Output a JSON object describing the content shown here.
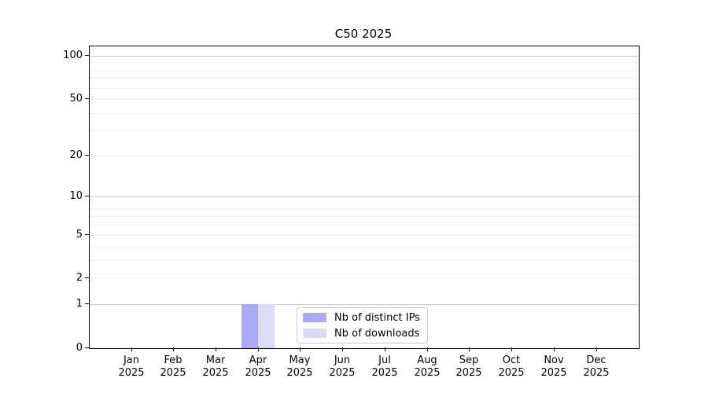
{
  "title": "C50 2025",
  "chart_data": {
    "type": "bar",
    "title": "C50 2025",
    "scale": "log1p",
    "grid": "horizontal",
    "legend_position": "lower center",
    "categories": [
      "Jan",
      "Feb",
      "Mar",
      "Apr",
      "May",
      "Jun",
      "Jul",
      "Aug",
      "Sep",
      "Oct",
      "Nov",
      "Dec"
    ],
    "category_year": "2025",
    "series": [
      {
        "name": "Nb of distinct IPs",
        "color": "#a9a9f5",
        "values": [
          0,
          0,
          0,
          1,
          0,
          0,
          0,
          0,
          0,
          0,
          0,
          0
        ]
      },
      {
        "name": "Nb of downloads",
        "color": "#dcdcf8",
        "values": [
          0,
          0,
          0,
          1,
          0,
          0,
          0,
          0,
          0,
          0,
          0,
          0
        ]
      }
    ],
    "y_ticks": [
      0,
      1,
      2,
      5,
      10,
      20,
      50,
      100
    ],
    "y_major_gridlines": [
      1,
      10,
      100
    ],
    "y_minor_gridlines": [
      2,
      3,
      4,
      5,
      6,
      7,
      8,
      9,
      20,
      30,
      40,
      50,
      60,
      70,
      80,
      90
    ],
    "ylim": [
      0,
      116
    ]
  },
  "colors": {
    "background": "#ffffff",
    "axis": "#000000",
    "text": "#000000",
    "gridline_major": "#c9c9c9",
    "gridline_minor": "#f2f2f2",
    "bar_distinct_ips": "#a9a9f5",
    "bar_downloads": "#dcdcf8",
    "legend_border": "#c9c9c9"
  }
}
